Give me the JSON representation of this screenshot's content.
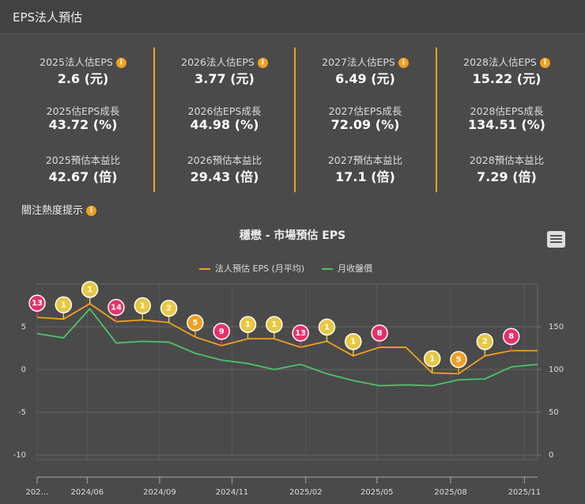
{
  "header": {
    "title": "EPS法人預估"
  },
  "stats": [
    {
      "items": [
        {
          "label": "2025法人估EPS",
          "value": "2.6 (元)"
        },
        {
          "label": "2025估EPS成長",
          "value": "43.72 (%)"
        },
        {
          "label": "2025預估本益比",
          "value": "42.67 (倍)"
        }
      ]
    },
    {
      "items": [
        {
          "label": "2026法人估EPS",
          "value": "3.77 (元)"
        },
        {
          "label": "2026估EPS成長",
          "value": "44.98 (%)"
        },
        {
          "label": "2026預估本益比",
          "value": "29.43 (倍)"
        }
      ]
    },
    {
      "items": [
        {
          "label": "2027法人估EPS",
          "value": "6.49 (元)"
        },
        {
          "label": "2027估EPS成長",
          "value": "72.09 (%)"
        },
        {
          "label": "2027預估本益比",
          "value": "17.1 (倍)"
        }
      ]
    },
    {
      "items": [
        {
          "label": "2028法人估EPS",
          "value": "15.22 (元)"
        },
        {
          "label": "2028估EPS成長",
          "value": "134.51 (%)"
        },
        {
          "label": "2028預估本益比",
          "value": "7.29 (倍)"
        }
      ]
    }
  ],
  "attention_title": "關注熱度提示",
  "chart_data": {
    "type": "line",
    "title": "穩懋 - 市場預估 EPS",
    "x": [
      0,
      1,
      2,
      3,
      4,
      5,
      6,
      7,
      8,
      9,
      10,
      11,
      12,
      13,
      14,
      15,
      16,
      17,
      18,
      19
    ],
    "xlim": [
      0,
      19
    ],
    "xticks": [
      {
        "value": 0,
        "label": "202…"
      },
      {
        "value": 1.9,
        "label": "2024/06"
      },
      {
        "value": 4.65,
        "label": "2024/09"
      },
      {
        "value": 7.4,
        "label": "2024/11"
      },
      {
        "value": 10.2,
        "label": "2025/02"
      },
      {
        "value": 12.9,
        "label": "2025/05"
      },
      {
        "value": 15.7,
        "label": "2025/08"
      },
      {
        "value": 18.5,
        "label": "2025/11"
      }
    ],
    "ylim": [
      -10,
      10
    ],
    "yticks": [
      5,
      0,
      -5,
      -10
    ],
    "y2lim": [
      0,
      200
    ],
    "y2ticks": [
      150,
      100,
      50,
      0
    ],
    "grid": true,
    "series": [
      {
        "name": "法人預估 EPS (月平均)",
        "color": "#f0a020",
        "values": [
          6.1,
          5.9,
          7.7,
          5.6,
          5.8,
          5.5,
          3.8,
          2.8,
          3.6,
          3.6,
          2.6,
          3.3,
          1.6,
          2.6,
          2.6,
          -0.4,
          -0.5,
          1.6,
          2.2,
          2.2
        ]
      },
      {
        "name": "月收盤價",
        "color": "#4cc46a",
        "axis": "y2",
        "values": [
          142,
          137,
          171,
          131,
          133,
          132,
          119,
          111,
          107,
          100,
          106,
          95,
          87,
          81,
          82,
          81,
          88,
          89,
          103,
          106
        ]
      }
    ],
    "attention": [
      13,
      1,
      1,
      14,
      1,
      2,
      5,
      9,
      1,
      1,
      13,
      1,
      1,
      8,
      null,
      1,
      5,
      2,
      8,
      null
    ],
    "attention_colors": [
      "#e8306a",
      "#e8c840",
      "#e8c840",
      "#e8306a",
      "#e8c840",
      "#e8c840",
      "#f0a020",
      "#e8306a",
      "#e8c840",
      "#e8c840",
      "#e8306a",
      "#e8c840",
      "#e8c840",
      "#e8306a",
      null,
      "#e8c840",
      "#f0a020",
      "#e8c840",
      "#e8306a",
      null
    ]
  }
}
